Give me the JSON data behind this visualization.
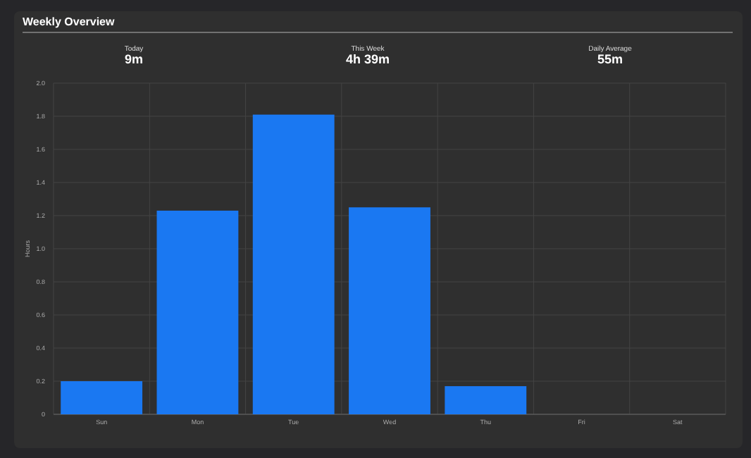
{
  "chart_data": {
    "type": "bar",
    "title": "Weekly Overview",
    "annotations": [
      "Today",
      "9m",
      "This Week",
      "4h 39m",
      "Daily Average",
      "55m"
    ],
    "ylabel": "Hours",
    "categories": [
      "Sun",
      "Mon",
      "Tue",
      "Wed",
      "Thu",
      "Fri",
      "Sat"
    ],
    "values": [
      0.2,
      1.23,
      1.81,
      1.25,
      0.17,
      0,
      0
    ],
    "color": "#1a78f2",
    "ylim": [
      0,
      2
    ],
    "yticks": [
      0,
      0.2,
      0.4,
      0.6,
      0.8,
      {
        "value": 1,
        "label": "1.0"
      },
      1.2,
      1.4,
      1.6,
      1.8,
      {
        "value": 2,
        "label": "2.0"
      }
    ],
    "grid": true
  }
}
